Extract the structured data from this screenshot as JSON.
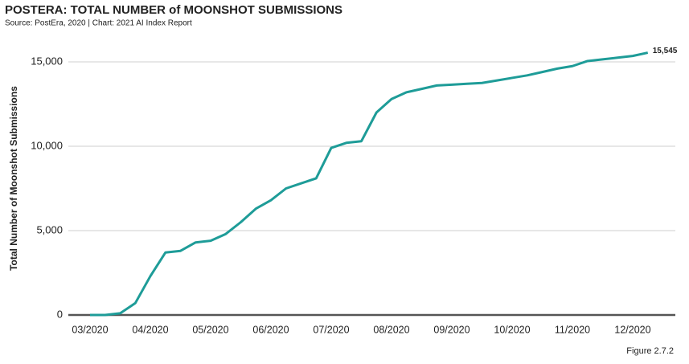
{
  "chart_data": {
    "type": "line",
    "title": "POSTERA: TOTAL NUMBER of MOONSHOT SUBMISSIONS",
    "subtitle": "Source: PostEra, 2020 | Chart: 2021 AI Index Report",
    "y_label": "Total Number of Moonshot Submissions",
    "figure_label": "Figure 2.7.2",
    "categories": [
      "03/2020",
      null,
      null,
      null,
      "04/2020",
      null,
      null,
      null,
      "05/2020",
      null,
      null,
      null,
      "06/2020",
      null,
      null,
      null,
      "07/2020",
      null,
      null,
      null,
      "08/2020",
      null,
      null,
      null,
      "09/2020",
      null,
      null,
      null,
      "10/2020",
      null,
      null,
      null,
      "11/2020",
      null,
      null,
      null,
      "12/2020",
      null
    ],
    "values": [
      0,
      0,
      100,
      700,
      2300,
      3700,
      3800,
      4300,
      4400,
      4800,
      5500,
      6300,
      6800,
      7500,
      7800,
      8100,
      9900,
      10200,
      10300,
      12000,
      12800,
      13200,
      13400,
      13600,
      13650,
      13700,
      13750,
      13900,
      14050,
      14200,
      14400,
      14600,
      14750,
      15050,
      15150,
      15250,
      15350,
      15545
    ],
    "value_labels": [
      null,
      null,
      null,
      null,
      null,
      null,
      null,
      null,
      null,
      null,
      null,
      null,
      null,
      null,
      null,
      null,
      null,
      null,
      null,
      null,
      null,
      null,
      null,
      null,
      null,
      null,
      null,
      null,
      null,
      null,
      null,
      null,
      null,
      null,
      null,
      null,
      null,
      "15,545"
    ],
    "color": "#1e9c98",
    "ylim": [
      0,
      16000
    ],
    "yticks": [
      0,
      {
        "value": 5000,
        "label": "5,000"
      },
      {
        "value": 10000,
        "label": "10,000"
      },
      {
        "value": 15000,
        "label": "15,000"
      }
    ],
    "grid": true
  }
}
